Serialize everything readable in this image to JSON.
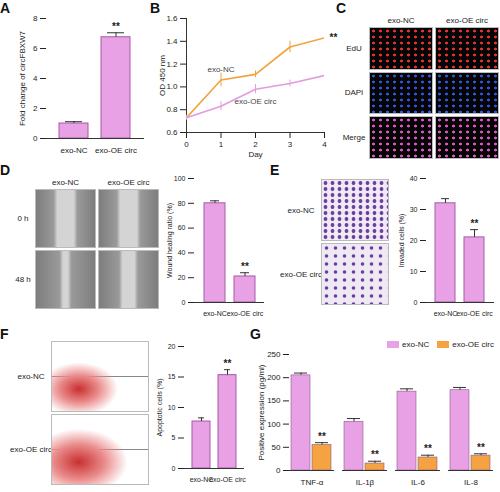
{
  "chart_data": [
    {
      "panel": "A",
      "type": "bar",
      "categories": [
        "exo-NC",
        "exo-OE circ"
      ],
      "values": [
        1.0,
        6.75
      ],
      "errors": [
        0.12,
        0.3
      ],
      "y_label": "Fold change of circFBXW7",
      "ylim": [
        0,
        8
      ],
      "yticks": [
        0,
        2,
        4,
        6,
        8
      ],
      "color": "#e7a1e4",
      "annotation": "**"
    },
    {
      "panel": "B",
      "type": "line",
      "x": [
        0,
        1,
        2,
        3,
        4
      ],
      "x_label": "Day",
      "y_label": "OD 450 nm",
      "xlim": [
        0,
        4
      ],
      "xticks": [
        0,
        1,
        2,
        3,
        4
      ],
      "ylim": [
        0.6,
        1.6
      ],
      "yticks": [
        0.6,
        0.8,
        {
          "value": 1.0,
          "label": "1.0"
        },
        1.2,
        1.4,
        1.6
      ],
      "series": [
        {
          "name": "exo-NC",
          "color": "#f0a33c",
          "values": [
            0.73,
            1.06,
            1.11,
            1.35,
            1.43
          ],
          "errors": [
            0.02,
            0.06,
            0.03,
            0.05,
            0.03
          ],
          "annotation": "**"
        },
        {
          "name": "exo-OE circ",
          "color": "#e39be0",
          "values": [
            0.73,
            0.83,
            0.98,
            1.03,
            1.1
          ],
          "errors": [
            0.02,
            0.04,
            0.04,
            0.03,
            0.08
          ]
        }
      ]
    },
    {
      "panel": "D",
      "type": "bar",
      "categories": [
        "exo-NC",
        "exo-OE circ"
      ],
      "values": [
        80,
        21
      ],
      "errors": [
        2,
        3
      ],
      "y_label": "Wound healing ratio (%)",
      "ylim": [
        0,
        100
      ],
      "yticks": [
        0,
        20,
        40,
        60,
        80,
        100
      ],
      "color": "#e7a1e4",
      "annotation": "**"
    },
    {
      "panel": "E",
      "type": "bar",
      "categories": [
        "exo-NC",
        "exo-OE circ"
      ],
      "values": [
        32,
        21
      ],
      "errors": [
        1.5,
        2.5
      ],
      "y_label": "Invaded cells (%)",
      "ylim": [
        0,
        40
      ],
      "yticks": [
        0,
        10,
        20,
        30,
        40
      ],
      "color": "#e7a1e4",
      "annotation": "**"
    },
    {
      "panel": "F",
      "type": "bar",
      "categories": [
        "exo-NC",
        "exo-OE circ"
      ],
      "values": [
        7.7,
        15.3
      ],
      "errors": [
        0.6,
        0.9
      ],
      "y_label": "Apoptotic cells (%)",
      "ylim": [
        0,
        20
      ],
      "yticks": [
        0,
        5,
        10,
        15,
        20
      ],
      "color": "#e7a1e4",
      "annotation": "**"
    },
    {
      "panel": "G",
      "type": "grouped_bar",
      "categories": [
        "TNF-α",
        "IL-1β",
        "IL-6",
        "IL-8"
      ],
      "y_label": "Positive expression (pg/ml)",
      "ylim": [
        0,
        250
      ],
      "yticks": [
        0,
        50,
        100,
        150,
        200,
        250
      ],
      "legend": "top-right",
      "series": [
        {
          "name": "exo-NC",
          "color": "#e7a1e4",
          "values": [
            205,
            105,
            170,
            173
          ],
          "errors": [
            5,
            7,
            6,
            6
          ]
        },
        {
          "name": "exo-OE circ",
          "color": "#f5a342",
          "values": [
            55,
            15,
            28,
            32
          ],
          "errors": [
            5,
            5,
            5,
            4
          ],
          "annotation": "**"
        }
      ]
    }
  ],
  "images": {
    "C": {
      "columns": [
        "exo-NC",
        "exo-OE circ"
      ],
      "rows": [
        "EdU",
        "DAPI",
        "Merge"
      ]
    },
    "D": {
      "columns": [
        "exo-NC",
        "exo-OE circ"
      ],
      "rows": [
        "0 h",
        "48 h"
      ]
    },
    "E": {
      "rows": [
        "exo-NC",
        "exo-OE circ"
      ]
    },
    "F": {
      "rows": [
        "exo-NC",
        "exo-OE circ"
      ]
    }
  }
}
